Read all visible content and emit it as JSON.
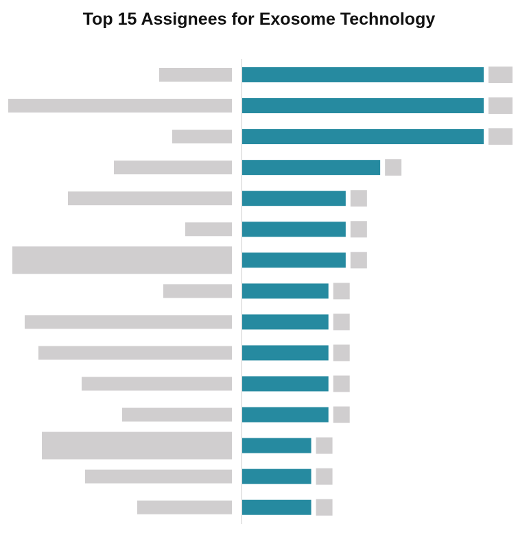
{
  "chart_data": {
    "type": "bar",
    "orientation": "horizontal",
    "title": "Top 15 Assignees for  Exosome Technology",
    "categories_redacted": true,
    "values": [
      14,
      14,
      14,
      8,
      6,
      6,
      6,
      5,
      5,
      5,
      5,
      5,
      4,
      4,
      4
    ],
    "xlim": [
      0,
      14
    ],
    "grid": false,
    "legend": "none",
    "colors": {
      "bar": "#268aa0",
      "redaction": "#d0cecf",
      "axis": "#cccccc"
    }
  }
}
